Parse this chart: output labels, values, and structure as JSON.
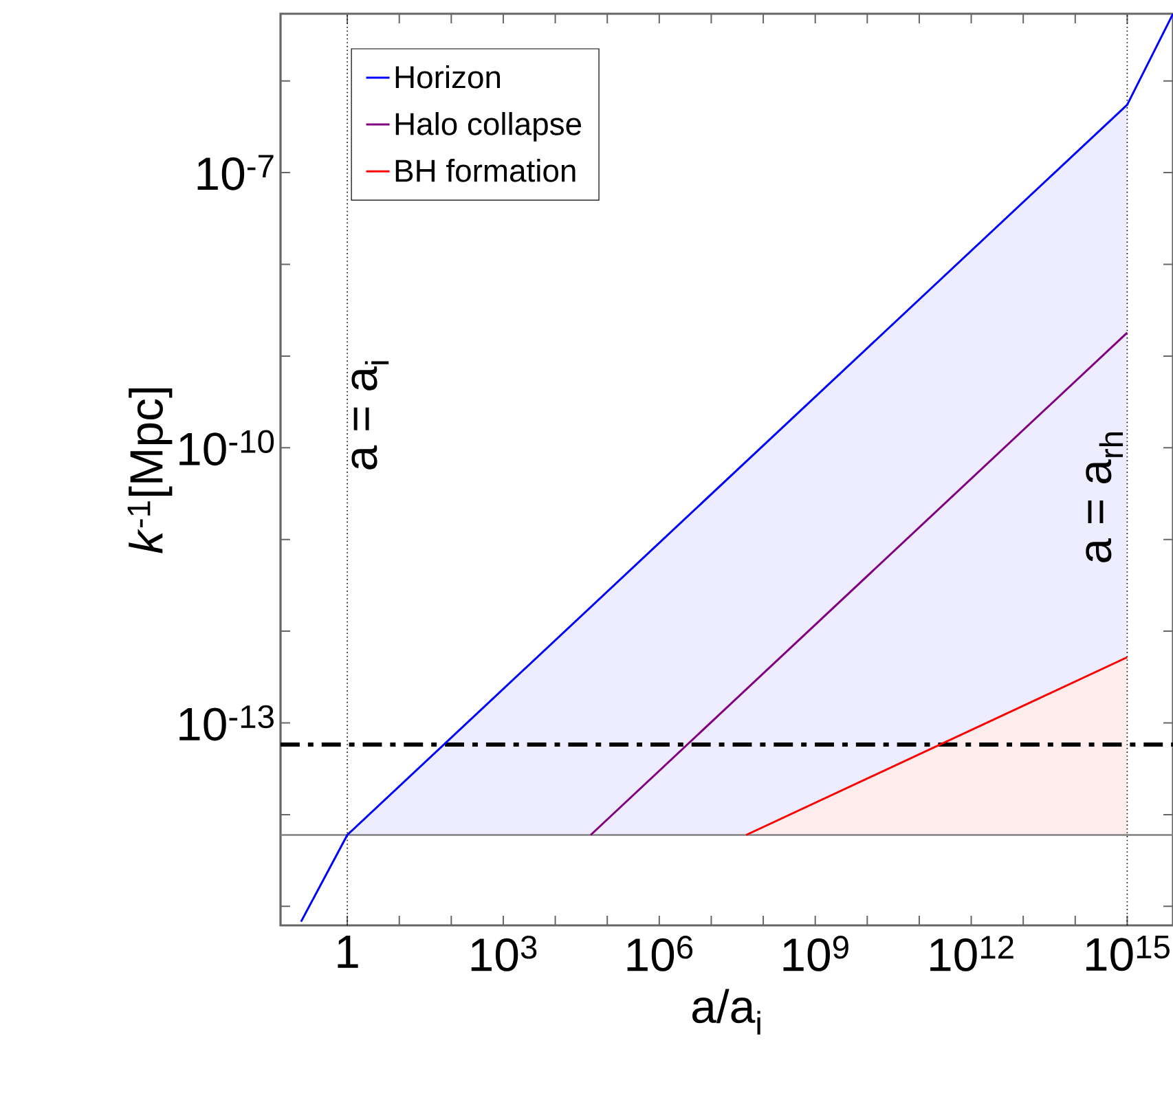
{
  "chart_data": {
    "type": "line",
    "xlabel": "a/a$_{i}$",
    "ylabel": "*k*$^{-1}$[Mpc]",
    "log": "xy",
    "legend": "top left",
    "grid": false,
    "marker": "none",
    "xlim": [
      0.052,
      7600000000000000.0
    ],
    "ylim": [
      6.2e-16,
      5.4e-06
    ],
    "xticks": [
      {
        "value": 1,
        "label": "1"
      },
      {
        "value": 10,
        "label": null
      },
      {
        "value": 100,
        "label": null
      },
      {
        "value": 1000,
        "label": "10$^{3}$"
      },
      {
        "value": 10000.0,
        "label": null
      },
      {
        "value": 100000.0,
        "label": null
      },
      {
        "value": 1000000.0,
        "label": "10$^{6}$"
      },
      {
        "value": 10000000.0,
        "label": null
      },
      {
        "value": 100000000.0,
        "label": null
      },
      {
        "value": 1000000000.0,
        "label": "10$^{9}$"
      },
      {
        "value": 10000000000.0,
        "label": null
      },
      {
        "value": 100000000000.0,
        "label": null
      },
      {
        "value": 1000000000000.0,
        "label": "10$^{12}$"
      },
      {
        "value": 10000000000000.0,
        "label": null
      },
      {
        "value": 100000000000000.0,
        "label": null
      },
      {
        "value": 1000000000000000.0,
        "label": "10$^{15}$"
      }
    ],
    "yticks": [
      {
        "value": 1e-15,
        "label": null
      },
      {
        "value": 1e-14,
        "label": null
      },
      {
        "value": 1e-13,
        "label": "10$^{-13}$"
      },
      {
        "value": 1e-12,
        "label": null
      },
      {
        "value": 1e-11,
        "label": null
      },
      {
        "value": 1e-10,
        "label": "10$^{-10}$"
      },
      {
        "value": 1e-09,
        "label": null
      },
      {
        "value": 1e-08,
        "label": null
      },
      {
        "value": 1e-07,
        "label": "10$^{-7}$"
      },
      {
        "value": 1e-06,
        "label": null
      }
    ],
    "series": [
      {
        "name": "Horizon",
        "color": "#0000ff",
        "x": [
          0.129,
          1,
          1000000000000000.0,
          7600000000000000.0
        ],
        "values": [
          6.8e-16,
          6e-15,
          5.5e-07,
          5.4e-06
        ],
        "lower": [
          null,
          6e-15,
          6e-15,
          null
        ],
        "upper": [
          null,
          6e-15,
          5.5e-07,
          null
        ]
      },
      {
        "name": "Halo collapse",
        "color": "#800080",
        "x": [
          48000.0,
          1000000000000000.0
        ],
        "values": [
          6e-15,
          1.8e-09
        ]
      },
      {
        "name": "BH formation",
        "color": "#ff0000",
        "x": [
          47000000.0,
          1000000000000000.0
        ],
        "values": [
          6e-15,
          5.2e-13
        ],
        "lower": [
          6e-15,
          6e-15
        ],
        "upper": [
          6e-15,
          5.2e-13
        ]
      }
    ],
    "ref_lines": [
      {
        "axis": "y",
        "value": 5.8e-14,
        "color": "#000000",
        "line_style": "dashdot"
      },
      {
        "axis": "y",
        "value": 6e-15,
        "color": "#808080",
        "line_style": "solid"
      },
      {
        "axis": "x",
        "value": 1,
        "label": "a = a$_{i}$",
        "color": "#000000",
        "line_style": "dotted"
      },
      {
        "axis": "x",
        "value": 1000000000000000.0,
        "label": "a = a$_{rh}$",
        "color": "#000000",
        "line_style": "dotted"
      }
    ]
  }
}
